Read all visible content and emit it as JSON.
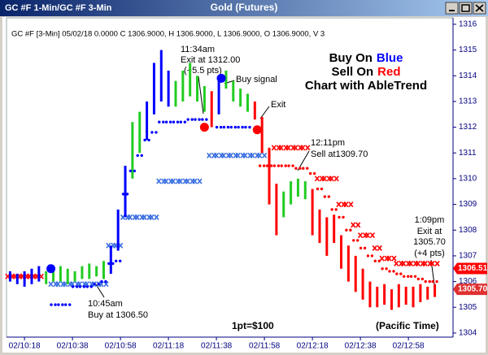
{
  "window": {
    "left_title": "GC #F 1-Min/GC #F 3-Min",
    "title": "Gold (Futures)"
  },
  "chart_data": {
    "type": "ohlc",
    "header": "GC #F [3-Min] 05/02/18  0.0000 C 1306.9000, H 1306.9000, L 1306.9000, O 1306.9000, V 3",
    "legend_text": {
      "buy": "Buy On",
      "buy_color": "Blue",
      "sell": "Sell On",
      "sell_color": "Red",
      "line3": "Chart with AbleTrend"
    },
    "annotations": {
      "exit1_time": "11:34am",
      "exit1_price": "Exit at 1312.00",
      "exit1_pts": "(+5.5 pts)",
      "buy_signal": "Buy signal",
      "exit2": "Exit",
      "sell_time": "12:11pm",
      "sell_price": "Sell at1309.70",
      "buy_time": "10:45am",
      "buy_price": "Buy at 1306.50",
      "exit3_time": "1:09pm",
      "exit3_label": "Exit at",
      "exit3_price": "1305.70",
      "exit3_pts": "(+4 pts)",
      "point_value": "1pt=$100",
      "timezone": "(Pacific Time)"
    },
    "x": [
      612,
      615,
      618,
      621,
      624,
      627,
      630,
      633,
      636,
      639,
      642,
      645,
      648,
      651,
      654,
      657,
      660,
      663,
      666,
      669,
      672,
      675,
      678,
      681,
      684,
      687,
      690,
      693,
      696,
      699,
      702,
      705,
      708,
      711,
      714,
      717,
      720,
      723,
      726,
      729,
      732,
      735,
      738,
      741,
      744,
      747,
      750,
      753,
      756,
      759,
      762,
      765,
      768,
      771,
      774,
      777,
      780,
      783,
      786,
      789
    ],
    "high": [
      1306.4,
      1306.3,
      1306.4,
      1306.5,
      1306.6,
      1306.4,
      1306.5,
      1306.6,
      1306.5,
      1306.4,
      1306.6,
      1306.7,
      1306.6,
      1306.8,
      1307.4,
      1308.8,
      1310.5,
      1312.2,
      1312.6,
      1313.0,
      1314.5,
      1315.0,
      1314.2,
      1313.8,
      1314.2,
      1314.5,
      1314.0,
      1313.6,
      1313.4,
      1313.8,
      1314.2,
      1313.8,
      1313.5,
      1313.3,
      1313.0,
      1312.4,
      1311.2,
      1309.8,
      1309.5,
      1309.9,
      1310.0,
      1309.9,
      1309.6,
      1308.8,
      1308.5,
      1308.6,
      1307.8,
      1307.4,
      1307.0,
      1306.5,
      1306.0,
      1305.8,
      1305.9,
      1305.7,
      1305.9,
      1305.8,
      1305.8,
      1305.9,
      1305.8,
      1305.9
    ],
    "low": [
      1306.0,
      1305.9,
      1305.8,
      1305.9,
      1306.0,
      1305.9,
      1306.0,
      1306.0,
      1305.9,
      1306.0,
      1306.1,
      1306.1,
      1306.2,
      1306.1,
      1306.3,
      1307.2,
      1308.5,
      1310.0,
      1311.0,
      1311.5,
      1312.5,
      1313.0,
      1312.8,
      1312.8,
      1313.0,
      1313.2,
      1313.0,
      1312.6,
      1312.0,
      1312.5,
      1313.5,
      1313.0,
      1312.8,
      1312.6,
      1312.3,
      1311.0,
      1309.0,
      1307.8,
      1308.5,
      1309.0,
      1309.3,
      1309.2,
      1307.8,
      1307.5,
      1307.0,
      1307.5,
      1306.5,
      1306.0,
      1305.6,
      1305.3,
      1305.0,
      1305.0,
      1305.1,
      1304.9,
      1305.0,
      1305.1,
      1305.0,
      1305.2,
      1305.3,
      1305.4
    ],
    "bar_colors": [
      "#0000ff",
      "#0000ff",
      "#0000ff",
      "#0000ff",
      "#0000ff",
      "#22cc22",
      "#22cc22",
      "#22cc22",
      "#22cc22",
      "#22cc22",
      "#22cc22",
      "#22cc22",
      "#22cc22",
      "#22cc22",
      "#0000ff",
      "#0000ff",
      "#0000ff",
      "#22cc22",
      "#22cc22",
      "#0000ff",
      "#0000ff",
      "#0000ff",
      "#0000ff",
      "#22cc22",
      "#22cc22",
      "#22cc22",
      "#22cc22",
      "#22cc22",
      "#ff0000",
      "#0000ff",
      "#22cc22",
      "#22cc22",
      "#22cc22",
      "#22cc22",
      "#ff0000",
      "#ff0000",
      "#ff0000",
      "#ff0000",
      "#22cc22",
      "#22cc22",
      "#22cc22",
      "#22cc22",
      "#ff0000",
      "#ff0000",
      "#ff0000",
      "#ff0000",
      "#ff0000",
      "#ff0000",
      "#ff0000",
      "#ff0000",
      "#ff0000",
      "#ff0000",
      "#ff0000",
      "#ff0000",
      "#ff0000",
      "#ff0000",
      "#ff0000",
      "#ff0000",
      "#ff0000",
      "#ff0000"
    ],
    "stops": [
      null,
      null,
      null,
      null,
      null,
      null,
      1305.1,
      1305.1,
      1305.1,
      1305.8,
      1305.8,
      1305.8,
      1305.9,
      1306.0,
      1306.7,
      1306.8,
      1309.4,
      1310.3,
      1310.9,
      1311.5,
      1311.8,
      1312.2,
      1312.2,
      1312.2,
      1312.2,
      1312.3,
      1312.3,
      1312.3,
      null,
      1312.0,
      1312.0,
      1312.0,
      1312.0,
      1312.0,
      null,
      1310.5,
      1310.5,
      1310.5,
      1310.5,
      1310.5,
      1310.4,
      1310.4,
      1310.2,
      1309.6,
      1309.3,
      1308.8,
      1308.5,
      1308.0,
      1307.6,
      1307.3,
      1307.0,
      1306.8,
      1306.5,
      1306.4,
      1306.3,
      1306.2,
      1306.2,
      1306.1,
      1306.0,
      1306.0
    ],
    "stop_colors": [
      "#0000ff",
      "#0000ff",
      "#0000ff",
      "#0000ff",
      "#0000ff",
      "#0000ff",
      "#0000ff",
      "#0000ff",
      "#0000ff",
      "#0000ff",
      "#0000ff",
      "#0000ff",
      "#0000ff",
      "#0000ff",
      "#0000ff",
      "#0000ff",
      "#0000ff",
      "#0000ff",
      "#0000ff",
      "#0000ff",
      "#0000ff",
      "#0000ff",
      "#0000ff",
      "#0000ff",
      "#0000ff",
      "#0000ff",
      "#0000ff",
      "#0000ff",
      "#0000ff",
      "#0000ff",
      "#0000ff",
      "#0000ff",
      "#0000ff",
      "#0000ff",
      "#0000ff",
      "#ff0000",
      "#ff0000",
      "#ff0000",
      "#ff0000",
      "#ff0000",
      "#ff0000",
      "#ff0000",
      "#ff0000",
      "#ff0000",
      "#ff0000",
      "#ff0000",
      "#ff0000",
      "#ff0000",
      "#ff0000",
      "#ff0000",
      "#ff0000",
      "#ff0000",
      "#ff0000",
      "#ff0000",
      "#ff0000",
      "#ff0000",
      "#ff0000",
      "#ff0000",
      "#ff0000",
      "#ff0000"
    ],
    "x_marks": [
      1306.2,
      1306.2,
      1306.2,
      1306.2,
      1306.2,
      null,
      1305.9,
      1305.9,
      1305.9,
      1305.9,
      1305.9,
      1305.9,
      1305.9,
      1305.9,
      1307.4,
      1307.4,
      1308.5,
      1308.5,
      1308.5,
      1308.5,
      1308.5,
      1309.9,
      1309.9,
      1309.9,
      1309.9,
      1309.9,
      1309.9,
      null,
      1310.9,
      1310.9,
      1310.9,
      1310.9,
      1310.9,
      1310.9,
      1310.9,
      1310.9,
      null,
      1311.2,
      1311.2,
      1311.2,
      1311.2,
      1311.2,
      null,
      1310.0,
      1310.0,
      1310.0,
      1309.0,
      1309.0,
      1308.2,
      1307.8,
      1307.8,
      1307.3,
      1306.9,
      1306.9,
      1306.7,
      1306.7,
      1306.7,
      1306.7,
      1306.7,
      1306.7
    ],
    "x_mark_colors": [
      "#ff0000",
      "#ff0000",
      "#ff0000",
      "#ff0000",
      "#ff0000",
      "#ff0000",
      "#3a6fe0",
      "#3a6fe0",
      "#3a6fe0",
      "#3a6fe0",
      "#3a6fe0",
      "#3a6fe0",
      "#3a6fe0",
      "#3a6fe0",
      "#3a6fe0",
      "#3a6fe0",
      "#3a6fe0",
      "#3a6fe0",
      "#3a6fe0",
      "#3a6fe0",
      "#3a6fe0",
      "#3a6fe0",
      "#3a6fe0",
      "#3a6fe0",
      "#3a6fe0",
      "#3a6fe0",
      "#3a6fe0",
      "#3a6fe0",
      "#3a6fe0",
      "#3a6fe0",
      "#3a6fe0",
      "#3a6fe0",
      "#3a6fe0",
      "#3a6fe0",
      "#3a6fe0",
      "#3a6fe0",
      "#ff0000",
      "#ff0000",
      "#ff0000",
      "#ff0000",
      "#ff0000",
      "#ff0000",
      "#ff0000",
      "#ff0000",
      "#ff0000",
      "#ff0000",
      "#ff0000",
      "#ff0000",
      "#ff0000",
      "#ff0000",
      "#ff0000",
      "#ff0000",
      "#ff0000",
      "#ff0000",
      "#ff0000",
      "#ff0000",
      "#ff0000",
      "#ff0000",
      "#ff0000",
      "#ff0000"
    ],
    "signals": {
      "x": [
        629,
        693,
        700,
        715
      ],
      "y": [
        1306.5,
        1312.0,
        1313.9,
        1311.9
      ],
      "colors": [
        "#0000ff",
        "#ff0000",
        "#0000ff",
        "#ff0000"
      ]
    },
    "price_flags": {
      "values": [
        1306.51,
        1305.7
      ],
      "value_labels": [
        "1306.51",
        "1305.70"
      ],
      "colors": [
        "#ff0000",
        "#e03030"
      ]
    },
    "xlim": [
      610.5,
      796.6
    ],
    "ylim": [
      1303.84,
      1316.25
    ],
    "yticks": [
      1304,
      1305,
      1306,
      1307,
      1308,
      1309,
      1310,
      1311,
      1312,
      1313,
      1314,
      1315,
      1316
    ],
    "xticks": [
      {
        "value": 618,
        "label": "02/10:18"
      },
      {
        "value": 638,
        "label": "02/10:38"
      },
      {
        "value": 658,
        "label": "02/10:58"
      },
      {
        "value": 678,
        "label": "02/11:18"
      },
      {
        "value": 698,
        "label": "02/11:38"
      },
      {
        "value": 718,
        "label": "02/11:58"
      },
      {
        "value": 738,
        "label": "02/12:18"
      },
      {
        "value": 758,
        "label": "02/12:38"
      },
      {
        "value": 778,
        "label": "02/12:58"
      }
    ]
  }
}
